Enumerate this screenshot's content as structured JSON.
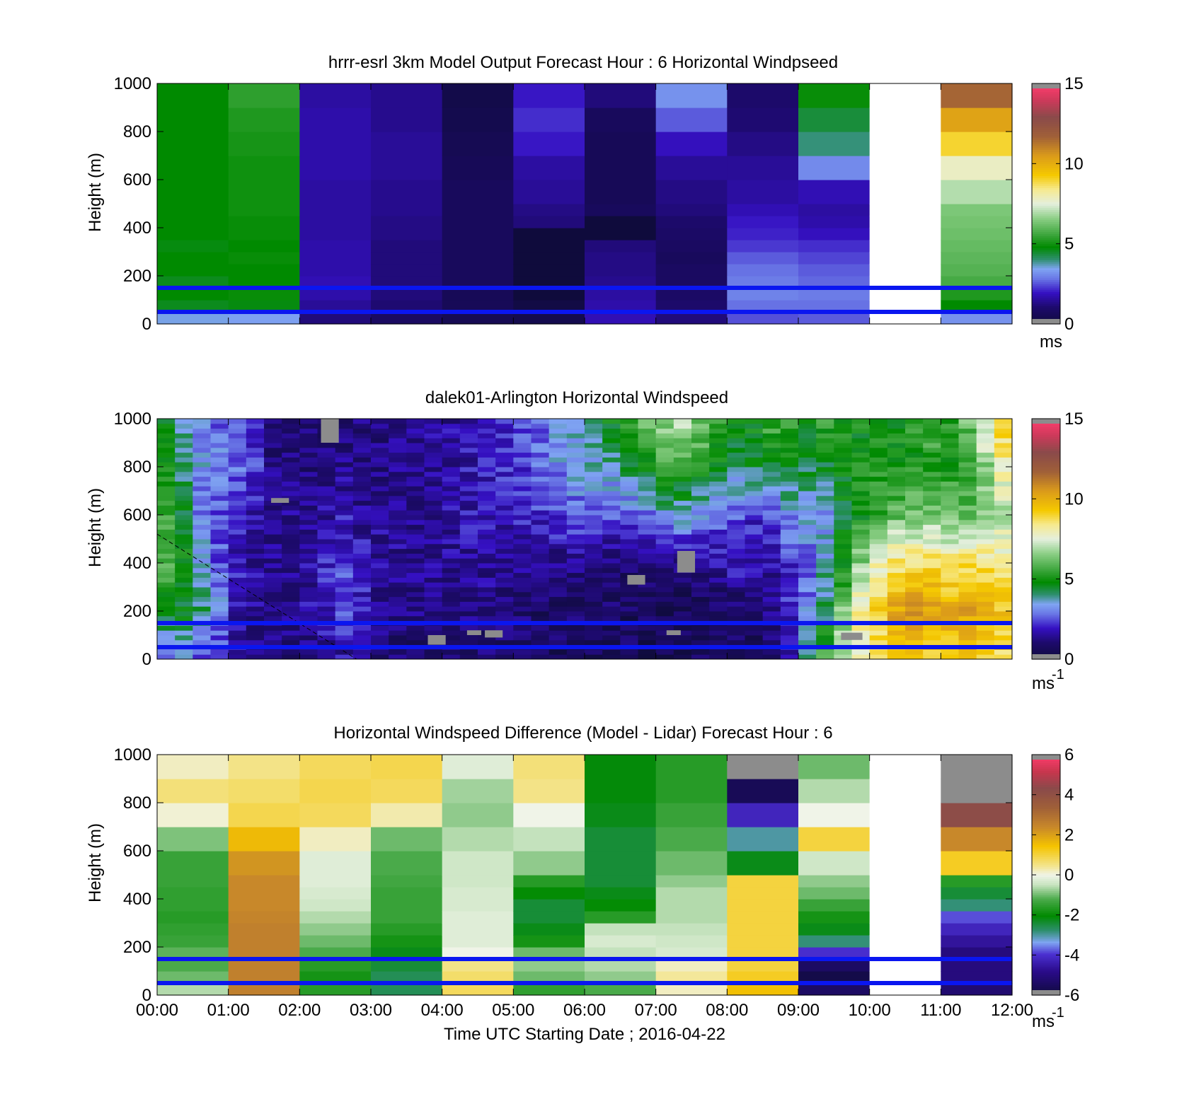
{
  "figure": {
    "xlabel": "Time UTC  Starting Date ; 2016-04-22"
  },
  "colors": {
    "background": "#ffffff",
    "reference_lines": "#0a16f0",
    "missing": "#8c8c8c",
    "no_data": "#ffffff"
  },
  "chart_data": [
    {
      "type": "heatmap",
      "title": "hrrr-esrl 3km Model Output   Forecast Hour : 6 Horizontal Windpseed",
      "ylabel": "Height (m)",
      "x_ticks": [
        "00:00",
        "01:00",
        "02:00",
        "03:00",
        "04:00",
        "05:00",
        "06:00",
        "07:00",
        "08:00",
        "09:00",
        "10:00",
        "11:00",
        "12:00"
      ],
      "x_tick_labels_shown": false,
      "xlim_hours": [
        0,
        12
      ],
      "ylim": [
        0,
        1000
      ],
      "y_ticks": [
        0,
        200,
        400,
        600,
        800,
        1000
      ],
      "grid": false,
      "colorbar": {
        "min": 0,
        "max": 15,
        "ticks": [
          0,
          5,
          10,
          15
        ],
        "unit": "ms",
        "unit_sup": ""
      },
      "reference_lines_m": [
        50,
        150
      ],
      "levels_m": [
        0,
        50,
        100,
        150,
        200,
        250,
        300,
        350,
        400,
        450,
        500,
        600,
        700,
        800,
        900,
        1000
      ],
      "columns": [
        {
          "hour_start": 0,
          "hour_end": 1,
          "values": [
            3.5,
            4.6,
            4.8,
            4.6,
            4.8,
            4.8,
            4.7,
            4.8,
            4.8,
            4.8,
            4.8,
            4.8,
            4.8,
            4.8,
            4.8
          ]
        },
        {
          "hour_start": 1,
          "hour_end": 2,
          "values": [
            3.4,
            4.7,
            4.9,
            4.8,
            4.8,
            4.9,
            4.8,
            4.9,
            4.9,
            5.0,
            5.0,
            5.0,
            5.1,
            5.2,
            5.4
          ]
        },
        {
          "hour_start": 2,
          "hour_end": 3,
          "values": [
            1.2,
            1.5,
            1.7,
            1.8,
            1.7,
            1.7,
            1.7,
            1.6,
            1.6,
            1.6,
            1.6,
            1.7,
            1.7,
            1.7,
            1.6
          ]
        },
        {
          "hour_start": 3,
          "hour_end": 4,
          "values": [
            0.8,
            1.1,
            1.2,
            1.2,
            1.2,
            1.2,
            1.2,
            1.3,
            1.3,
            1.4,
            1.4,
            1.5,
            1.5,
            1.4,
            1.4
          ]
        },
        {
          "hour_start": 4,
          "hour_end": 5,
          "values": [
            0.5,
            0.6,
            0.6,
            0.7,
            0.7,
            0.7,
            0.7,
            0.7,
            0.7,
            0.7,
            0.7,
            0.6,
            0.5,
            0.4,
            0.3
          ]
        },
        {
          "hour_start": 5,
          "hour_end": 6,
          "values": [
            0.4,
            0.2,
            0,
            0,
            0,
            0,
            0,
            0,
            1.2,
            1.3,
            1.5,
            1.6,
            2.0,
            2.2,
            2.0
          ]
        },
        {
          "hour_start": 6,
          "hour_end": 7,
          "values": [
            1.8,
            1.7,
            1.6,
            1.4,
            1.3,
            1.3,
            1.2,
            0,
            0,
            0.7,
            0.6,
            0.6,
            0.6,
            0.7,
            1.2
          ]
        },
        {
          "hour_start": 7,
          "hour_end": 8,
          "values": [
            1.2,
            1.0,
            0.9,
            0.8,
            0.8,
            0.7,
            0.8,
            0.9,
            1.0,
            1.2,
            1.3,
            1.5,
            1.9,
            2.6,
            3.2
          ]
        },
        {
          "hour_start": 8,
          "hour_end": 9,
          "values": [
            2.5,
            2.8,
            3.0,
            2.9,
            2.8,
            2.6,
            2.3,
            2.1,
            2.0,
            1.8,
            1.6,
            1.5,
            1.3,
            1.1,
            1.0
          ]
        },
        {
          "hour_start": 9,
          "hour_end": 10,
          "values": [
            2.6,
            2.8,
            2.9,
            2.7,
            2.6,
            2.4,
            2.2,
            1.9,
            1.7,
            1.6,
            1.8,
            3.1,
            4.0,
            4.4,
            4.9
          ]
        },
        {
          "hour_start": 10,
          "hour_end": 11,
          "values": [
            null,
            null,
            null,
            null,
            null,
            null,
            null,
            null,
            null,
            null,
            null,
            null,
            null,
            null,
            null
          ]
        },
        {
          "hour_start": 11,
          "hour_end": 12,
          "values": [
            3.2,
            4.8,
            5.2,
            5.7,
            5.9,
            6.0,
            6.1,
            6.2,
            6.3,
            6.4,
            7.0,
            7.8,
            9.0,
            10.3,
            11.6
          ]
        }
      ]
    },
    {
      "type": "heatmap",
      "title": "dalek01-Arlington  Horizontal Windspeed",
      "ylabel": "Height (m)",
      "x_ticks": [
        "00:00",
        "01:00",
        "02:00",
        "03:00",
        "04:00",
        "05:00",
        "06:00",
        "07:00",
        "08:00",
        "09:00",
        "10:00",
        "11:00",
        "12:00"
      ],
      "x_tick_labels_shown": false,
      "xlim_hours": [
        0,
        12
      ],
      "ylim": [
        0,
        1000
      ],
      "y_ticks": [
        0,
        200,
        400,
        600,
        800,
        1000
      ],
      "grid": false,
      "colorbar": {
        "min": 0,
        "max": 15,
        "ticks": [
          0,
          5,
          10,
          15
        ],
        "unit": "ms",
        "unit_sup": "-1"
      },
      "reference_lines_m": [
        50,
        150
      ],
      "dashed_line": {
        "x_hours": [
          0,
          2.8
        ],
        "y_m": [
          520,
          0
        ]
      },
      "time_step_hours": 0.25,
      "heights_m": [
        0,
        200,
        400,
        600,
        800,
        1000
      ],
      "profiles": [
        [
          3.2,
          4.4,
          5.8,
          5.4,
          5.0,
          4.8
        ],
        [
          3.0,
          4.7,
          5.0,
          4.3,
          4.2,
          4.0
        ],
        [
          2.6,
          4.0,
          3.4,
          3.0,
          3.2,
          3.0
        ],
        [
          2.2,
          3.1,
          2.6,
          2.4,
          3.0,
          2.8
        ],
        [
          1.6,
          1.8,
          1.9,
          2.0,
          2.8,
          2.6
        ],
        [
          1.2,
          1.4,
          1.6,
          1.8,
          2.2,
          2.0
        ],
        [
          1.0,
          1.3,
          1.4,
          1.5,
          1.2,
          1.0
        ],
        [
          1.0,
          1.4,
          1.5,
          1.4,
          1.1,
          0.9
        ],
        [
          1.2,
          1.6,
          1.7,
          1.4,
          1.1,
          0.9
        ],
        [
          1.4,
          2.0,
          2.1,
          1.6,
          1.2,
          1.0
        ],
        [
          1.6,
          2.6,
          2.4,
          1.8,
          1.3,
          1.0
        ],
        [
          1.3,
          2.0,
          2.0,
          1.5,
          1.2,
          1.1
        ],
        [
          1.0,
          1.4,
          1.6,
          1.4,
          1.2,
          1.1
        ],
        [
          0.9,
          1.3,
          1.5,
          1.4,
          1.3,
          1.2
        ],
        [
          0.8,
          1.2,
          1.4,
          1.4,
          1.4,
          1.3
        ],
        [
          0.7,
          1.1,
          1.4,
          1.5,
          1.5,
          1.4
        ],
        [
          0.8,
          1.1,
          1.5,
          1.6,
          1.6,
          1.5
        ],
        [
          0.8,
          1.2,
          1.6,
          1.8,
          1.8,
          1.6
        ],
        [
          0.9,
          1.2,
          1.6,
          1.8,
          1.9,
          1.7
        ],
        [
          0.9,
          1.1,
          1.5,
          1.9,
          2.1,
          2.0
        ],
        [
          0.8,
          1.0,
          1.4,
          2.0,
          2.4,
          2.4
        ],
        [
          0.7,
          0.9,
          1.3,
          2.2,
          2.8,
          2.8
        ],
        [
          0.7,
          0.9,
          1.3,
          2.4,
          3.1,
          3.3
        ],
        [
          0.7,
          0.9,
          1.2,
          2.6,
          3.4,
          3.6
        ],
        [
          0.6,
          0.8,
          1.2,
          2.6,
          3.6,
          4.2
        ],
        [
          0.6,
          0.8,
          1.1,
          2.5,
          3.8,
          4.8
        ],
        [
          0.6,
          0.7,
          1.0,
          2.6,
          4.2,
          5.4
        ],
        [
          0.5,
          0.7,
          1.0,
          2.9,
          4.8,
          6.2
        ],
        [
          0.5,
          0.6,
          1.1,
          3.4,
          5.4,
          6.8
        ],
        [
          0.5,
          0.6,
          1.2,
          3.6,
          5.6,
          7.0
        ],
        [
          0.6,
          0.6,
          1.4,
          3.2,
          5.2,
          6.4
        ],
        [
          0.6,
          0.7,
          1.6,
          2.8,
          4.6,
          5.6
        ],
        [
          0.7,
          0.7,
          2.0,
          2.6,
          4.2,
          4.8
        ],
        [
          0.9,
          0.8,
          1.8,
          2.2,
          4.4,
          4.8
        ],
        [
          1.0,
          1.2,
          1.6,
          2.6,
          4.8,
          5.6
        ],
        [
          1.8,
          2.0,
          2.2,
          3.2,
          4.6,
          5.4
        ],
        [
          3.6,
          3.0,
          2.8,
          3.4,
          4.4,
          5.2
        ],
        [
          5.6,
          4.2,
          3.6,
          3.2,
          4.6,
          5.4
        ],
        [
          7.0,
          6.4,
          4.8,
          4.6,
          4.8,
          5.2
        ],
        [
          7.8,
          8.2,
          6.6,
          5.0,
          4.9,
          5.0
        ],
        [
          8.4,
          9.4,
          7.8,
          5.6,
          5.0,
          4.8
        ],
        [
          8.8,
          10.2,
          8.6,
          6.0,
          5.0,
          5.0
        ],
        [
          9.4,
          10.6,
          8.8,
          6.2,
          5.2,
          5.2
        ],
        [
          9.2,
          10.2,
          8.8,
          6.4,
          5.4,
          5.6
        ],
        [
          9.0,
          10.0,
          8.6,
          6.0,
          5.2,
          5.4
        ],
        [
          9.2,
          10.2,
          8.8,
          6.0,
          5.6,
          6.2
        ],
        [
          9.0,
          9.8,
          8.6,
          6.4,
          6.6,
          7.8
        ],
        [
          8.8,
          9.4,
          8.4,
          7.0,
          8.0,
          9.2
        ]
      ],
      "missing_cells": [
        {
          "hours": [
            2.3,
            2.55
          ],
          "heights_m": [
            900,
            1000
          ]
        },
        {
          "hours": [
            1.6,
            1.85
          ],
          "heights_m": [
            650,
            670
          ]
        },
        {
          "hours": [
            6.6,
            6.85
          ],
          "heights_m": [
            310,
            350
          ]
        },
        {
          "hours": [
            7.3,
            7.55
          ],
          "heights_m": [
            360,
            450
          ]
        },
        {
          "hours": [
            7.15,
            7.35
          ],
          "heights_m": [
            100,
            120
          ]
        },
        {
          "hours": [
            3.8,
            4.05
          ],
          "heights_m": [
            60,
            100
          ]
        },
        {
          "hours": [
            4.35,
            4.55
          ],
          "heights_m": [
            100,
            120
          ]
        },
        {
          "hours": [
            4.6,
            4.85
          ],
          "heights_m": [
            90,
            120
          ]
        },
        {
          "hours": [
            9.6,
            9.9
          ],
          "heights_m": [
            80,
            110
          ]
        }
      ]
    },
    {
      "type": "heatmap",
      "title": "Horizontal Windspeed Difference (Model - Lidar) Forecast Hour : 6",
      "ylabel": "Height (m)",
      "xlabel": "Time UTC  Starting Date ; 2016-04-22",
      "x_ticks": [
        "00:00",
        "01:00",
        "02:00",
        "03:00",
        "04:00",
        "05:00",
        "06:00",
        "07:00",
        "08:00",
        "09:00",
        "10:00",
        "11:00",
        "12:00"
      ],
      "x_tick_labels_shown": true,
      "xlim_hours": [
        0,
        12
      ],
      "ylim": [
        0,
        1000
      ],
      "y_ticks": [
        0,
        200,
        400,
        600,
        800,
        1000
      ],
      "grid": false,
      "colorbar": {
        "min": -6,
        "max": 6,
        "ticks": [
          -6,
          -4,
          -2,
          0,
          2,
          4,
          6
        ],
        "unit": "ms",
        "unit_sup": "-1"
      },
      "reference_lines_m": [
        50,
        150
      ],
      "levels_m": [
        0,
        50,
        100,
        150,
        200,
        250,
        300,
        350,
        400,
        450,
        500,
        600,
        700,
        800,
        900,
        1000
      ],
      "columns": [
        {
          "hour_start": 0,
          "hour_end": 1,
          "values": [
            -0.6,
            -1.0,
            -1.2,
            -1.1,
            -1.4,
            -1.5,
            -1.6,
            -1.5,
            -1.5,
            -1.4,
            -1.4,
            -0.9,
            0.1,
            0.6,
            0.2
          ]
        },
        {
          "hour_start": 1,
          "hour_end": 2,
          "values": [
            2.6,
            2.6,
            2.6,
            2.6,
            2.6,
            2.6,
            2.5,
            2.4,
            2.4,
            2.4,
            2.2,
            1.6,
            0.9,
            0.7,
            0.5
          ]
        },
        {
          "hour_start": 2,
          "hour_end": 3,
          "values": [
            -1.6,
            -1.8,
            -1.6,
            -1.2,
            -1.0,
            -0.8,
            -0.6,
            -0.4,
            -0.3,
            -0.2,
            -0.2,
            0.2,
            0.8,
            0.9,
            0.8
          ]
        },
        {
          "hour_start": 3,
          "hour_end": 4,
          "values": [
            -2.6,
            -2.6,
            -2.4,
            -2.2,
            -1.8,
            -1.6,
            -1.4,
            -1.4,
            -1.4,
            -1.3,
            -1.2,
            -1.0,
            0.3,
            0.8,
            0.9
          ]
        },
        {
          "hour_start": 4,
          "hour_end": 5,
          "values": [
            0.8,
            0.7,
            0.5,
            0.0,
            -0.2,
            -0.2,
            -0.2,
            -0.3,
            -0.3,
            -0.4,
            -0.4,
            -0.6,
            -0.8,
            -0.7,
            -0.2
          ]
        },
        {
          "hour_start": 5,
          "hour_end": 6,
          "values": [
            -1.5,
            -1.0,
            -0.8,
            -1.0,
            -1.8,
            -2.2,
            -2.4,
            -2.4,
            -2.0,
            -1.6,
            -0.8,
            -0.5,
            0.0,
            0.5,
            0.6
          ]
        },
        {
          "hour_start": 6,
          "hour_end": 7,
          "values": [
            -1.2,
            -0.8,
            -0.6,
            -0.5,
            -0.3,
            -0.5,
            -1.6,
            -2.0,
            -2.2,
            -2.4,
            -2.4,
            -2.4,
            -2.2,
            -2.1,
            -2.1
          ]
        },
        {
          "hour_start": 7,
          "hour_end": 8,
          "values": [
            0.2,
            0.4,
            0.2,
            -0.3,
            -0.4,
            -0.5,
            -0.6,
            -0.6,
            -0.6,
            -0.8,
            -1.0,
            -1.2,
            -1.4,
            -1.6,
            -1.6
          ]
        },
        {
          "hour_start": 8,
          "hour_end": 9,
          "values": [
            1.5,
            1.2,
            1.0,
            1.0,
            1.0,
            1.0,
            1.0,
            1.0,
            1.0,
            1.0,
            -2.2,
            -3.0,
            -4.2,
            -5.6,
            null
          ]
        },
        {
          "hour_start": 9,
          "hour_end": 10,
          "values": [
            -5.4,
            -5.8,
            -5.4,
            -4.0,
            -2.8,
            -2.2,
            -1.8,
            -1.4,
            -1.0,
            -0.8,
            -0.4,
            1.0,
            0.0,
            -0.6,
            -1.0
          ]
        },
        {
          "hour_start": 10,
          "hour_end": 11,
          "values": [
            null,
            null,
            null,
            null,
            null,
            null,
            null,
            null,
            null,
            null,
            null,
            null,
            null,
            null,
            null
          ]
        },
        {
          "hour_start": 11,
          "hour_end": 12,
          "values": [
            -5.2,
            -5.0,
            -5.0,
            -5.0,
            -4.6,
            -4.2,
            -3.8,
            -2.8,
            -2.4,
            -1.6,
            1.2,
            2.4,
            4.2,
            null,
            null
          ]
        }
      ]
    }
  ]
}
